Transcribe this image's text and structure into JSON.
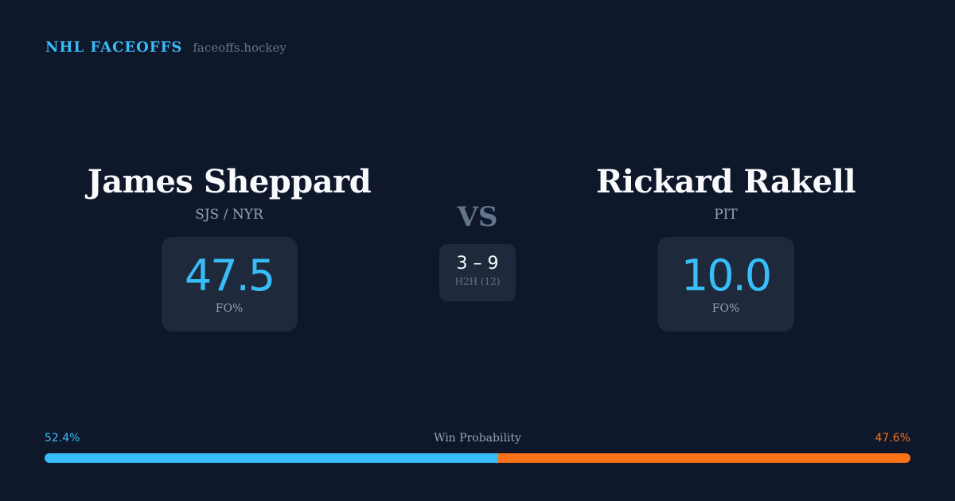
{
  "brand": {
    "name": "NHL FACEOFFS",
    "url": "faceoffs.hockey"
  },
  "player1": {
    "name": "James Sheppard",
    "team": "SJS / NYR",
    "fo_pct": "47.5",
    "fo_label": "FO%"
  },
  "player2": {
    "name": "Rickard Rakell",
    "team": "PIT",
    "fo_pct": "10.0",
    "fo_label": "FO%"
  },
  "vs": "VS",
  "h2h": {
    "score": "3 – 9",
    "label": "H2H (12)"
  },
  "win_probability": {
    "label": "Win Probability",
    "player1": "52.4%",
    "player2": "47.6%",
    "player1_value": 52.4
  },
  "colors": {
    "player1": "#38bdf8",
    "player2": "#f97316",
    "background": "#0f172a"
  }
}
